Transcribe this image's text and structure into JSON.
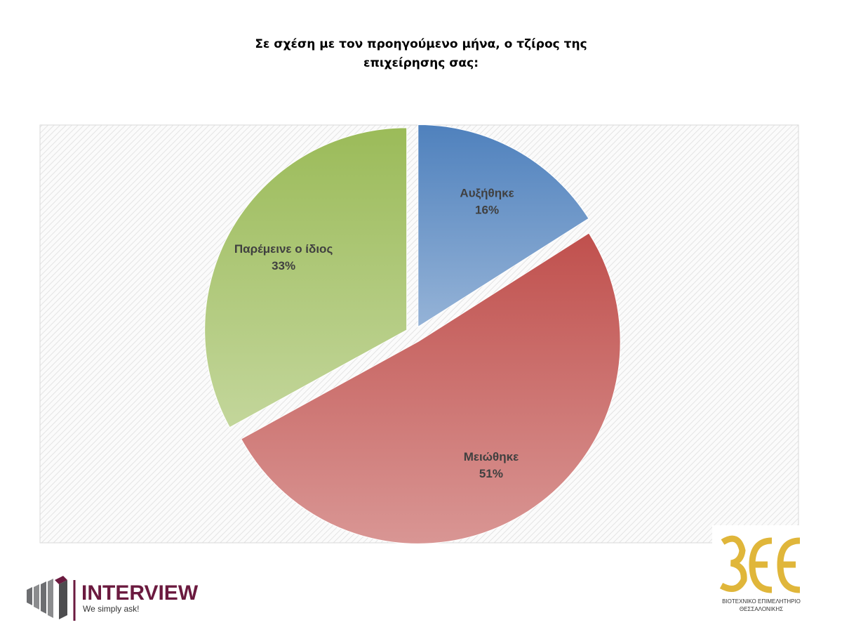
{
  "chart_data": {
    "type": "pie",
    "title": "Σε σχέση με τον προηγούμενο μήνα, ο τζίρος της επιχείρησης σας:",
    "categories": [
      "Αυξήθηκε",
      "Μειώθηκε",
      "Παρέμεινε ο ίδιος"
    ],
    "values": [
      16,
      51,
      33
    ],
    "value_labels": [
      "16%",
      "51%",
      "33%"
    ],
    "colors": [
      "#4f81bd",
      "#c0504d",
      "#9bbb59"
    ]
  },
  "logos": {
    "interview": {
      "name": "INTERVIEW",
      "tagline": "We simply ask!"
    },
    "chamber": {
      "line1": "ΒΙΟΤΕΧΝΙΚΟ ΕΠΙΜΕΛΗΤΗΡΙΟ",
      "line2": "ΘΕΣΣΑΛΟΝΙΚΗΣ"
    }
  }
}
